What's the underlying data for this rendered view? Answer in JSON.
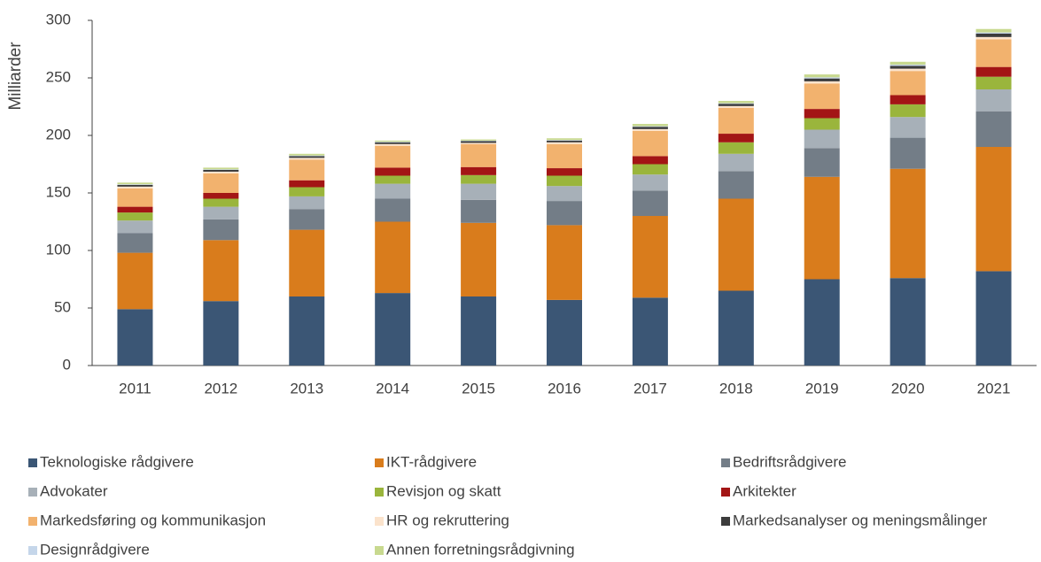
{
  "chart_data": {
    "type": "stacked_bar",
    "y_label": "Milliarder",
    "categories": [
      "2011",
      "2012",
      "2013",
      "2014",
      "2015",
      "2016",
      "2017",
      "2018",
      "2019",
      "2020",
      "2021"
    ],
    "ylim": [
      0,
      300
    ],
    "yticks": [
      0,
      50,
      100,
      150,
      200,
      250,
      300
    ],
    "grid": false,
    "series": [
      {
        "name": "Teknologiske rådgivere",
        "color": "#3b5675",
        "values": [
          49,
          56,
          60,
          63,
          60,
          57,
          59,
          65,
          75,
          76,
          82
        ]
      },
      {
        "name": "IKT-rådgivere",
        "color": "#d97c1c",
        "values": [
          49,
          53,
          58,
          62,
          64,
          65,
          71,
          80,
          89,
          95,
          108
        ]
      },
      {
        "name": "Bedriftsrådgivere",
        "color": "#737d87",
        "values": [
          17,
          18,
          18,
          20,
          20,
          21,
          22,
          24,
          25,
          27,
          31
        ]
      },
      {
        "name": "Advokater",
        "color": "#a7b0b8",
        "values": [
          11,
          11,
          11,
          13,
          14,
          13,
          14,
          15,
          16,
          18,
          19
        ]
      },
      {
        "name": "Revisjon og skatt",
        "color": "#9ab53c",
        "values": [
          7,
          7,
          8,
          7,
          7.5,
          9,
          9,
          10,
          10,
          11,
          11
        ]
      },
      {
        "name": "Arkitekter",
        "color": "#a31515",
        "values": [
          5,
          5,
          6,
          7,
          7,
          6.5,
          7,
          7.5,
          8,
          8,
          8.5
        ]
      },
      {
        "name": "Markedsføring og kommunikasjon",
        "color": "#f2b26e",
        "values": [
          16,
          17,
          18,
          19,
          20,
          21,
          22,
          22.5,
          22,
          21,
          24
        ]
      },
      {
        "name": "HR og rekruttering",
        "color": "#fbe3cc",
        "values": [
          1.5,
          1.5,
          1.5,
          1.5,
          1,
          1.5,
          1.5,
          1.5,
          2,
          2,
          2
        ]
      },
      {
        "name": "Markedsanalyser og meningsmålinger",
        "color": "#3c3c3c",
        "values": [
          1.5,
          1.5,
          1.5,
          1.5,
          1.5,
          1.5,
          2,
          2,
          2.5,
          2.5,
          3
        ]
      },
      {
        "name": "Designrådgivere",
        "color": "#c5d6ea",
        "values": [
          0.5,
          0.5,
          0.5,
          0.5,
          0.5,
          0.5,
          0.5,
          0.5,
          1,
          1,
          1
        ]
      },
      {
        "name": "Annen forretningsrådgivning",
        "color": "#c8d98f",
        "values": [
          1.5,
          1.5,
          1.5,
          1,
          1,
          1.5,
          2,
          2,
          2.5,
          2.5,
          3
        ]
      }
    ]
  }
}
